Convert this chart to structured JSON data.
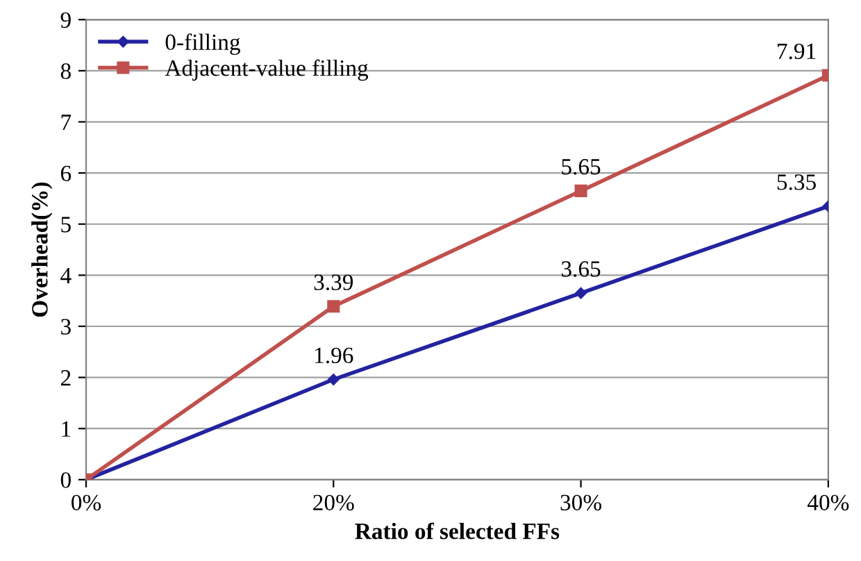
{
  "chart_data": {
    "type": "line",
    "xlabel": "Ratio of selected FFs",
    "ylabel": "Overhead(%)",
    "categories": [
      "0%",
      "20%",
      "30%",
      "40%"
    ],
    "ylim": [
      0,
      9
    ],
    "yticks": [
      0,
      1,
      2,
      3,
      4,
      5,
      6,
      7,
      8,
      9
    ],
    "grid": "y",
    "legend": "top left",
    "series": [
      {
        "name": "0-filling",
        "color": "#2323a0",
        "marker": "diamond",
        "values": [
          0,
          1.96,
          3.65,
          5.35
        ],
        "value_labels": [
          null,
          "1.96",
          "3.65",
          "5.35"
        ]
      },
      {
        "name": "Adjacent-value filling",
        "color": "#c0504d",
        "marker": "square",
        "values": [
          0,
          3.39,
          5.65,
          7.91
        ],
        "value_labels": [
          null,
          "3.39",
          "5.65",
          "7.91"
        ]
      }
    ]
  }
}
